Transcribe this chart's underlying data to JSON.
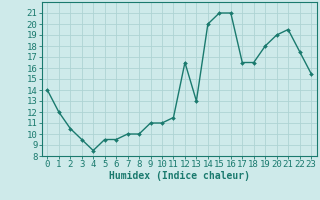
{
  "x": [
    0,
    1,
    2,
    3,
    4,
    5,
    6,
    7,
    8,
    9,
    10,
    11,
    12,
    13,
    14,
    15,
    16,
    17,
    18,
    19,
    20,
    21,
    22,
    23
  ],
  "y": [
    14,
    12,
    10.5,
    9.5,
    8.5,
    9.5,
    9.5,
    10,
    10,
    11,
    11,
    11.5,
    16.5,
    13,
    20,
    21,
    21,
    16.5,
    16.5,
    18,
    19,
    19.5,
    17.5,
    15.5
  ],
  "line_color": "#1a7a6e",
  "marker": "D",
  "marker_size": 2,
  "bg_color": "#ceeaea",
  "grid_color": "#aed4d4",
  "xlabel": "Humidex (Indice chaleur)",
  "ylim": [
    8,
    22
  ],
  "xlim": [
    -0.5,
    23.5
  ],
  "yticks": [
    8,
    9,
    10,
    11,
    12,
    13,
    14,
    15,
    16,
    17,
    18,
    19,
    20,
    21
  ],
  "xticks": [
    0,
    1,
    2,
    3,
    4,
    5,
    6,
    7,
    8,
    9,
    10,
    11,
    12,
    13,
    14,
    15,
    16,
    17,
    18,
    19,
    20,
    21,
    22,
    23
  ],
  "tick_color": "#1a7a6e",
  "axis_color": "#1a7a6e",
  "label_fontsize": 7,
  "tick_fontsize": 6.5
}
